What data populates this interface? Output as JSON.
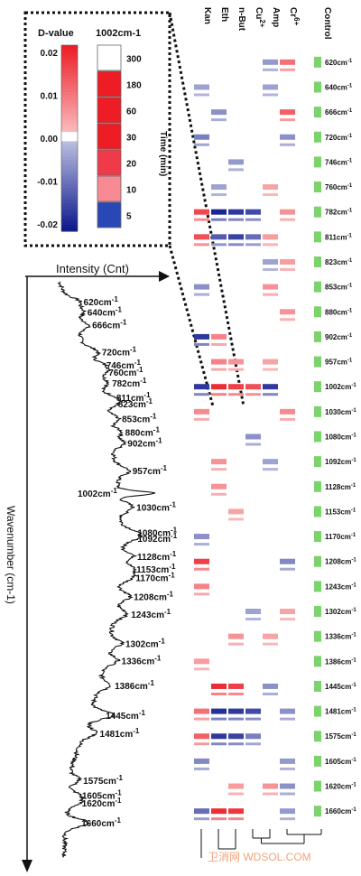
{
  "chart_data": {
    "type": "heatmap",
    "columns": [
      "Kan",
      "Eth",
      "n-But",
      "Cu2+",
      "Amp",
      "Cr6+",
      "Control"
    ],
    "column_superscripts": {
      "Cu2+": "2+",
      "Cr6+": "6+"
    },
    "wavenumbers": [
      620,
      640,
      666,
      720,
      746,
      760,
      782,
      811,
      823,
      853,
      880,
      902,
      957,
      1002,
      1030,
      1080,
      1092,
      1128,
      1153,
      1170,
      1208,
      1243,
      1302,
      1336,
      1386,
      1445,
      1481,
      1575,
      1605,
      1620,
      1660
    ],
    "values": [
      [
        0.0,
        0.0,
        0.0,
        0.0,
        -0.005,
        0.01,
        0.0
      ],
      [
        -0.004,
        0.0,
        0.0,
        0.0,
        -0.004,
        0.0,
        0.0
      ],
      [
        0.0,
        -0.006,
        0.0,
        0.0,
        0.0,
        0.012,
        0.0
      ],
      [
        -0.008,
        0.0,
        0.0,
        0.0,
        0.0,
        -0.006,
        0.0
      ],
      [
        0.0,
        0.0,
        -0.005,
        0.0,
        0.0,
        0.0,
        0.0
      ],
      [
        0.0,
        -0.004,
        0.0,
        0.0,
        0.004,
        0.0,
        0.0
      ],
      [
        0.015,
        -0.018,
        -0.016,
        -0.014,
        0.0,
        0.006,
        0.0
      ],
      [
        0.014,
        -0.012,
        -0.015,
        -0.01,
        0.005,
        0.0,
        0.0
      ],
      [
        0.0,
        0.0,
        0.0,
        0.0,
        -0.004,
        0.005,
        0.0
      ],
      [
        -0.006,
        0.0,
        0.0,
        0.0,
        0.006,
        0.0,
        0.0
      ],
      [
        0.0,
        0.0,
        0.0,
        0.0,
        0.0,
        0.006,
        0.0
      ],
      [
        -0.016,
        0.008,
        0.0,
        0.0,
        0.0,
        0.0,
        0.0
      ],
      [
        0.0,
        0.008,
        0.006,
        0.0,
        0.004,
        0.0,
        0.0
      ],
      [
        -0.016,
        0.018,
        0.016,
        0.014,
        -0.016,
        0.0,
        0.0
      ],
      [
        0.007,
        0.0,
        0.0,
        0.0,
        0.0,
        0.007,
        0.0
      ],
      [
        0.0,
        0.0,
        0.0,
        -0.006,
        0.0,
        0.0,
        0.0
      ],
      [
        0.0,
        0.006,
        0.0,
        0.0,
        -0.004,
        0.0,
        0.0
      ],
      [
        0.0,
        0.006,
        0.0,
        0.0,
        0.0,
        0.0,
        0.0
      ],
      [
        0.0,
        0.0,
        0.004,
        0.0,
        0.0,
        0.0,
        0.0
      ],
      [
        -0.006,
        0.0,
        0.0,
        0.0,
        0.0,
        0.0,
        0.0
      ],
      [
        0.016,
        0.0,
        0.0,
        0.0,
        0.0,
        -0.007,
        0.0
      ],
      [
        0.008,
        0.0,
        0.0,
        0.0,
        0.0,
        0.0,
        0.0
      ],
      [
        0.0,
        0.0,
        0.0,
        -0.004,
        0.0,
        0.004,
        0.0
      ],
      [
        0.0,
        0.0,
        0.006,
        0.0,
        0.004,
        0.0,
        0.0
      ],
      [
        0.005,
        0.0,
        0.0,
        0.0,
        0.0,
        0.0,
        0.0
      ],
      [
        0.0,
        0.018,
        0.016,
        0.0,
        -0.006,
        0.0,
        0.0
      ],
      [
        0.01,
        -0.017,
        -0.016,
        -0.014,
        0.0,
        -0.006,
        0.0
      ],
      [
        0.012,
        -0.016,
        -0.015,
        -0.008,
        0.0,
        0.0,
        0.0
      ],
      [
        -0.007,
        0.0,
        0.0,
        0.0,
        0.0,
        -0.005,
        0.0
      ],
      [
        0.0,
        0.0,
        0.005,
        0.0,
        0.006,
        -0.006,
        0.0
      ],
      [
        -0.01,
        0.018,
        0.017,
        0.0,
        0.0,
        -0.005,
        0.0
      ]
    ],
    "colorbar": {
      "title": "D-value",
      "ticks": [
        "0.02",
        "0.01",
        "0.00",
        "-0.01",
        "-0.02"
      ],
      "min": -0.02,
      "max": 0.02
    },
    "time_legend": {
      "title": "1002cm-1",
      "axis_label": "Time (min)",
      "entries": [
        "300",
        "180",
        "60",
        "30",
        "20",
        "10",
        "5"
      ],
      "colors": [
        "#ffffff",
        "#ee1c24",
        "#ee1c24",
        "#ee1c24",
        "#f03a4a",
        "#f78a92",
        "#2a47b8"
      ]
    },
    "spectrum": {
      "xlabel": "Intensity (Cnt)",
      "ylabel": "Wavenumber (cm-1)",
      "wavenumber_range": [
        580,
        1730
      ],
      "peaks": [
        620,
        640,
        666,
        720,
        746,
        760,
        782,
        811,
        823,
        853,
        880,
        902,
        957,
        1002,
        1030,
        1080,
        1092,
        1128,
        1153,
        1170,
        1208,
        1243,
        1302,
        1336,
        1386,
        1445,
        1481,
        1575,
        1605,
        1620,
        1660
      ]
    }
  },
  "unit_suffix": "cm-1",
  "watermark_text": "卫消网 WDSOL.COM"
}
